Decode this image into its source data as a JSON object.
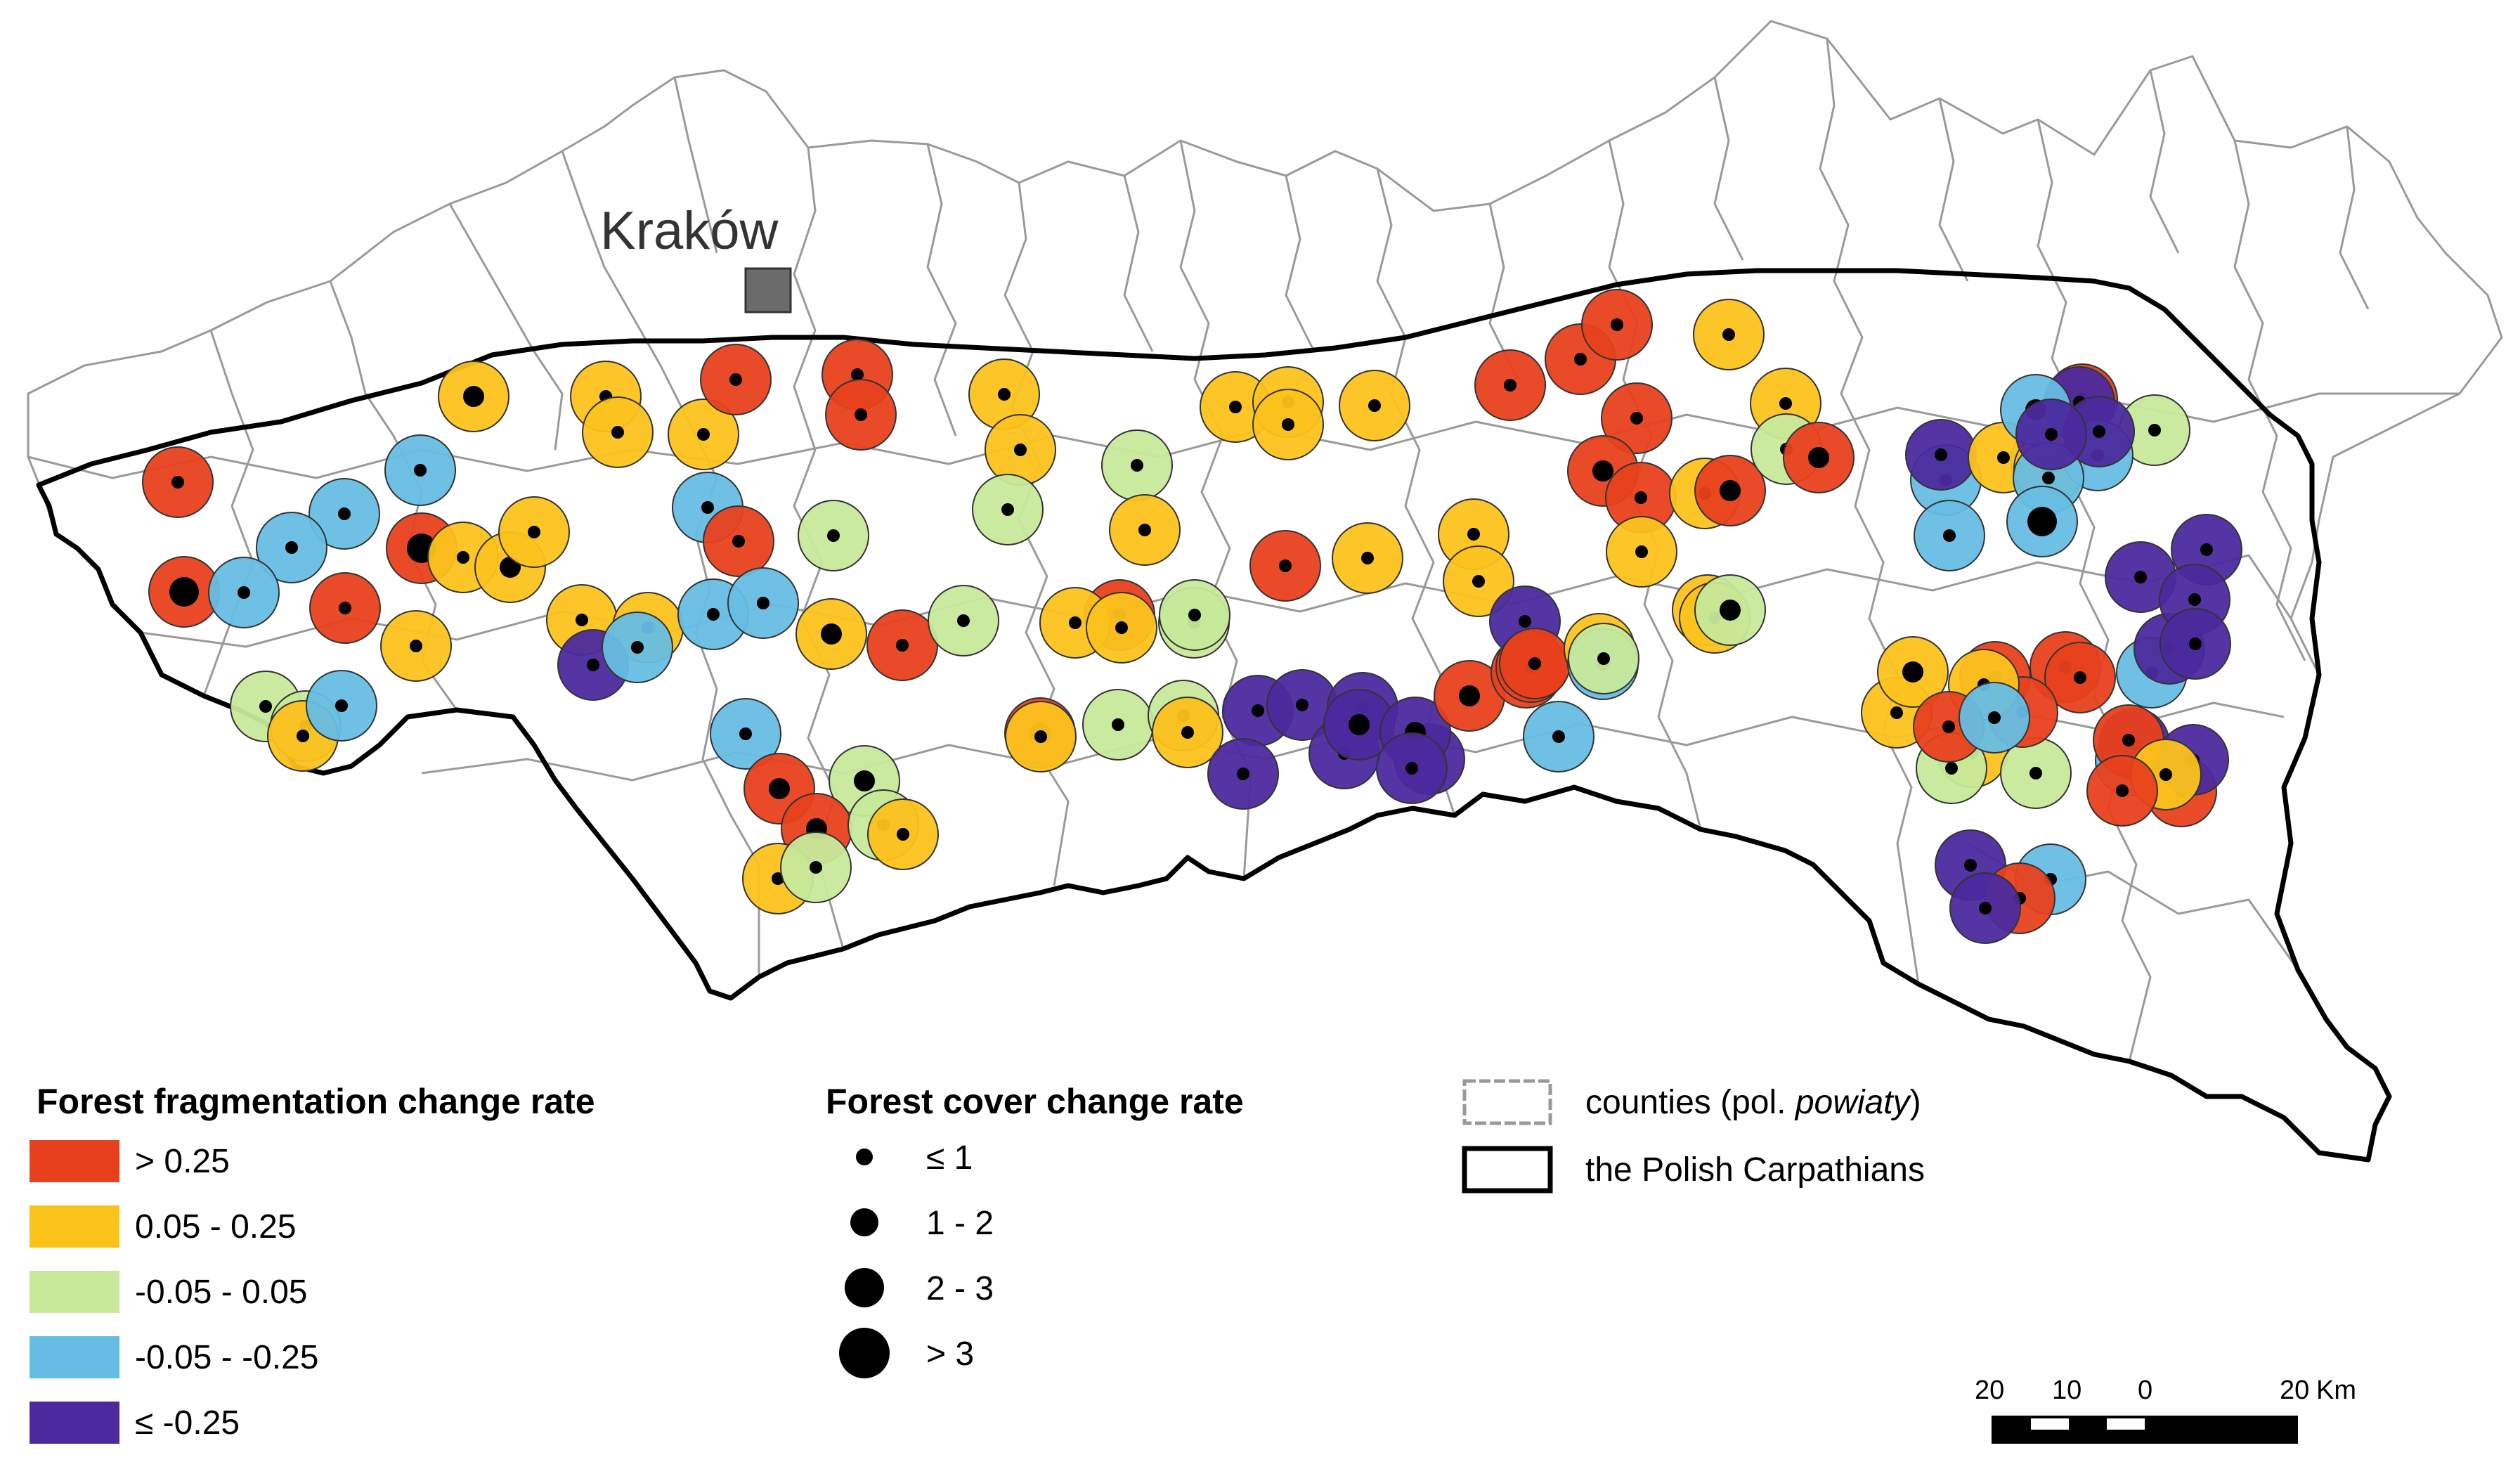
{
  "map": {
    "city": "Kraków",
    "fragmentation_colors": {
      "gt_025": "#e8401c",
      "p005_025": "#fcc21c",
      "m005_005": "#c6e99a",
      "m005_m025": "#66bde3",
      "le_m025": "#4b2a9e"
    },
    "points": [
      {
        "c": "gt_025",
        "s": 1
      },
      {
        "c": "gt_025",
        "s": 3
      },
      {
        "c": "m005_m025",
        "s": 1
      },
      {
        "c": "m005_m025",
        "s": 1
      },
      {
        "c": "m005_m025",
        "s": 1
      },
      {
        "c": "m005_m025",
        "s": 1
      },
      {
        "c": "gt_025",
        "s": 3
      },
      {
        "c": "gt_025",
        "s": 1
      },
      {
        "c": "m005_005",
        "s": 1
      },
      {
        "c": "m005_005",
        "s": 1
      },
      {
        "c": "p005_025",
        "s": 1
      },
      {
        "c": "m005_m025",
        "s": 1
      },
      {
        "c": "p005_025",
        "s": 1
      },
      {
        "c": "p005_025",
        "s": 2
      },
      {
        "c": "p005_025",
        "s": 1
      },
      {
        "c": "p005_025",
        "s": 2
      },
      {
        "c": "p005_025",
        "s": 1
      },
      {
        "c": "p005_025",
        "s": 1
      },
      {
        "c": "p005_025",
        "s": 1
      },
      {
        "c": "p005_025",
        "s": 1
      },
      {
        "c": "p005_025",
        "s": 1
      },
      {
        "c": "m005_m025",
        "s": 1
      },
      {
        "c": "gt_025",
        "s": 1
      },
      {
        "c": "m005_m025",
        "s": 1
      },
      {
        "c": "m005_m025",
        "s": 1
      },
      {
        "c": "le_m025",
        "s": 1
      },
      {
        "c": "m005_m025",
        "s": 1
      },
      {
        "c": "p005_025",
        "s": 1
      },
      {
        "c": "gt_025",
        "s": 1
      },
      {
        "c": "gt_025",
        "s": 1
      },
      {
        "c": "gt_025",
        "s": 1
      },
      {
        "c": "m005_005",
        "s": 1
      },
      {
        "c": "p005_025",
        "s": 2
      },
      {
        "c": "gt_025",
        "s": 1
      },
      {
        "c": "m005_005",
        "s": 1
      },
      {
        "c": "m005_005",
        "s": 2
      },
      {
        "c": "m005_m025",
        "s": 1
      },
      {
        "c": "gt_025",
        "s": 2
      },
      {
        "c": "gt_025",
        "s": 2
      },
      {
        "c": "p005_025",
        "s": 1
      },
      {
        "c": "m005_005",
        "s": 1
      },
      {
        "c": "m005_005",
        "s": 1
      },
      {
        "c": "p005_025",
        "s": 1
      },
      {
        "c": "p005_025",
        "s": 1
      },
      {
        "c": "p005_025",
        "s": 1
      },
      {
        "c": "m005_005",
        "s": 1
      },
      {
        "c": "m005_005",
        "s": 1
      },
      {
        "c": "p005_025",
        "s": 1
      },
      {
        "c": "m005_005",
        "s": 1
      },
      {
        "c": "gt_025",
        "s": 1
      },
      {
        "c": "p005_025",
        "s": 1
      },
      {
        "c": "p005_025",
        "s": 1
      },
      {
        "c": "m005_005",
        "s": 1
      },
      {
        "c": "gt_025",
        "s": 2
      },
      {
        "c": "p005_025",
        "s": 1
      },
      {
        "c": "m005_005",
        "s": 1
      },
      {
        "c": "m005_005",
        "s": 1
      },
      {
        "c": "p005_025",
        "s": 1
      },
      {
        "c": "p005_025",
        "s": 1
      },
      {
        "c": "p005_025",
        "s": 1
      },
      {
        "c": "p005_025",
        "s": 1
      },
      {
        "c": "p005_025",
        "s": 1
      },
      {
        "c": "gt_025",
        "s": 1
      },
      {
        "c": "p005_025",
        "s": 1
      },
      {
        "c": "p005_025",
        "s": 1
      },
      {
        "c": "p005_025",
        "s": 1
      },
      {
        "c": "le_m025",
        "s": 1
      },
      {
        "c": "le_m025",
        "s": 1
      },
      {
        "c": "le_m025",
        "s": 1
      },
      {
        "c": "le_m025",
        "s": 1
      },
      {
        "c": "le_m025",
        "s": 1
      },
      {
        "c": "le_m025",
        "s": 1
      },
      {
        "c": "le_m025",
        "s": 2
      },
      {
        "c": "le_m025",
        "s": 1
      },
      {
        "c": "le_m025",
        "s": 2
      },
      {
        "c": "le_m025",
        "s": 1
      },
      {
        "c": "m005_m025",
        "s": 1
      },
      {
        "c": "gt_025",
        "s": 2
      },
      {
        "c": "gt_025",
        "s": 1
      },
      {
        "c": "gt_025",
        "s": 1
      },
      {
        "c": "gt_025",
        "s": 1
      },
      {
        "c": "gt_025",
        "s": 1
      },
      {
        "c": "gt_025",
        "s": 1
      },
      {
        "c": "gt_025",
        "s": 1
      },
      {
        "c": "gt_025",
        "s": 1
      },
      {
        "c": "gt_025",
        "s": 2
      },
      {
        "c": "gt_025",
        "s": 1
      },
      {
        "c": "p005_025",
        "s": 1
      },
      {
        "c": "p005_025",
        "s": 1
      },
      {
        "c": "p005_025",
        "s": 1
      },
      {
        "c": "p005_025",
        "s": 1
      },
      {
        "c": "p005_025",
        "s": 1
      },
      {
        "c": "m005_m025",
        "s": 1
      },
      {
        "c": "m005_005",
        "s": 1
      },
      {
        "c": "gt_025",
        "s": 2
      },
      {
        "c": "m005_005",
        "s": 2
      },
      {
        "c": "p005_025",
        "s": 1
      },
      {
        "c": "p005_025",
        "s": 1
      },
      {
        "c": "m005_005",
        "s": 1
      },
      {
        "c": "gt_025",
        "s": 2
      },
      {
        "c": "p005_025",
        "s": 1
      },
      {
        "c": "p005_025",
        "s": 2
      },
      {
        "c": "p005_025",
        "s": 1
      },
      {
        "c": "m005_005",
        "s": 1
      },
      {
        "c": "m005_005",
        "s": 1
      },
      {
        "c": "gt_025",
        "s": 1
      },
      {
        "c": "gt_025",
        "s": 1
      },
      {
        "c": "gt_025",
        "s": 1
      },
      {
        "c": "gt_025",
        "s": 1
      },
      {
        "c": "p005_025",
        "s": 1
      },
      {
        "c": "gt_025",
        "s": 1
      },
      {
        "c": "m005_m025",
        "s": 1
      },
      {
        "c": "m005_m025",
        "s": 1
      },
      {
        "c": "m005_m025",
        "s": 1
      },
      {
        "c": "m005_m025",
        "s": 1
      },
      {
        "c": "le_m025",
        "s": 1
      },
      {
        "c": "p005_025",
        "s": 1
      },
      {
        "c": "p005_025",
        "s": 1
      },
      {
        "c": "gt_025",
        "s": 1
      },
      {
        "c": "m005_005",
        "s": 1
      },
      {
        "c": "le_m025",
        "s": 1
      },
      {
        "c": "m005_m025",
        "s": 2
      },
      {
        "c": "m005_m025",
        "s": 1
      },
      {
        "c": "m005_m025",
        "s": 1
      },
      {
        "c": "m005_m025",
        "s": 3
      },
      {
        "c": "le_m025",
        "s": 1
      },
      {
        "c": "le_m025",
        "s": 1
      },
      {
        "c": "le_m025",
        "s": 1
      },
      {
        "c": "le_m025",
        "s": 1
      },
      {
        "c": "m005_m025",
        "s": 1
      },
      {
        "c": "m005_m025",
        "s": 1
      },
      {
        "c": "le_m025",
        "s": 1
      },
      {
        "c": "le_m025",
        "s": 1
      },
      {
        "c": "le_m025",
        "s": 1
      },
      {
        "c": "le_m025",
        "s": 1
      },
      {
        "c": "gt_025",
        "s": 1
      },
      {
        "c": "le_m025",
        "s": 1
      },
      {
        "c": "gt_025",
        "s": 1
      },
      {
        "c": "p005_025",
        "s": 1
      },
      {
        "c": "gt_025",
        "s": 1
      },
      {
        "c": "le_m025",
        "s": 1
      },
      {
        "c": "m005_m025",
        "s": 1
      },
      {
        "c": "gt_025",
        "s": 1
      },
      {
        "c": "le_m025",
        "s": 1
      }
    ]
  },
  "legend": {
    "fragmentation": {
      "title": "Forest fragmentation change rate",
      "items": [
        {
          "label": "> 0.25",
          "color": "#e8401c"
        },
        {
          "label": "0.05 - 0.25",
          "color": "#fcc21c"
        },
        {
          "label": "-0.05 - 0.05",
          "color": "#c6e99a"
        },
        {
          "label": "-0.05 - -0.25",
          "color": "#66bde3"
        },
        {
          "label": "≤ -0.25",
          "color": "#4b2a9e"
        }
      ]
    },
    "cover": {
      "title": "Forest cover change rate",
      "items": [
        {
          "label": "≤ 1"
        },
        {
          "label": "1 - 2"
        },
        {
          "label": "2 - 3"
        },
        {
          "label": "> 3"
        }
      ]
    },
    "boundaries": {
      "counties_prefix": "counties (pol. ",
      "counties_italic": "powiaty",
      "counties_suffix": ")",
      "carpathians": "the Polish Carpathians"
    }
  },
  "scale_bar": {
    "labels": [
      "20",
      "10",
      "0",
      "20"
    ],
    "unit": "Km"
  }
}
